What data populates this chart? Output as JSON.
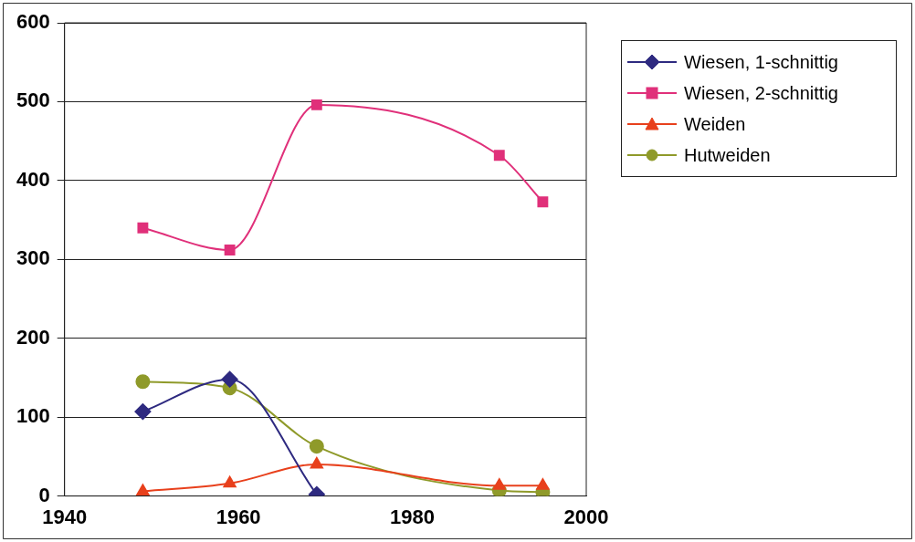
{
  "chart_data": {
    "type": "line",
    "xlim": [
      1940,
      2000
    ],
    "xticks": [
      1940,
      1960,
      1980,
      2000
    ],
    "ylim": [
      0,
      600
    ],
    "yticks": [
      0,
      100,
      200,
      300,
      400,
      500,
      600
    ],
    "grid": "y",
    "legend": "top right",
    "series": [
      {
        "name": "Wiesen, 1-schnittig",
        "color": "#2e2a80",
        "marker": "diamond",
        "x": [
          1949,
          1959,
          1969
        ],
        "values": [
          107,
          148,
          2
        ]
      },
      {
        "name": "Wiesen, 2-schnittig",
        "color": "#e0307a",
        "marker": "square",
        "x": [
          1949,
          1959,
          1969,
          1990,
          1995
        ],
        "values": [
          340,
          312,
          496,
          432,
          373
        ]
      },
      {
        "name": "Weiden",
        "color": "#e8401c",
        "marker": "triangle",
        "x": [
          1949,
          1959,
          1969,
          1990,
          1995
        ],
        "values": [
          6,
          16,
          40,
          13,
          13
        ]
      },
      {
        "name": "Hutweiden",
        "color": "#8f9a2a",
        "marker": "circle",
        "x": [
          1949,
          1959,
          1969,
          1990,
          1995
        ],
        "values": [
          145,
          137,
          63,
          7,
          5
        ]
      }
    ]
  }
}
